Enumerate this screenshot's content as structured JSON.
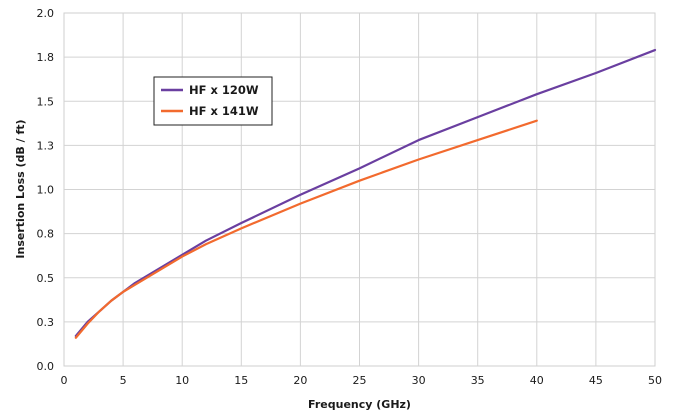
{
  "chart_data": {
    "type": "line",
    "title": "",
    "xlabel": "Frequency (GHz)",
    "ylabel": "Insertion Loss (dB / ft)",
    "xlim": [
      0,
      50
    ],
    "ylim": [
      0,
      2.0
    ],
    "x_ticks": [
      0,
      5,
      10,
      15,
      20,
      25,
      30,
      35,
      40,
      45,
      50
    ],
    "y_ticks": [
      0.0,
      0.25,
      0.5,
      0.75,
      1.0,
      1.25,
      1.5,
      1.75,
      2.0
    ],
    "y_tick_labels": [
      "0.0",
      "0.3",
      "0.5",
      "0.8",
      "1.0",
      "1.3",
      "1.5",
      "1.8",
      "2.0"
    ],
    "grid": true,
    "legend_position": "upper-left",
    "series": [
      {
        "name": "HF x 120W",
        "color": "#6a3fa0",
        "x": [
          1,
          2,
          3,
          4,
          5,
          6,
          8,
          10,
          12,
          15,
          20,
          25,
          30,
          35,
          40,
          45,
          50
        ],
        "y": [
          0.17,
          0.25,
          0.31,
          0.37,
          0.42,
          0.47,
          0.55,
          0.63,
          0.71,
          0.81,
          0.97,
          1.12,
          1.28,
          1.41,
          1.54,
          1.66,
          1.79
        ]
      },
      {
        "name": "HF x 141W",
        "color": "#f26a2e",
        "x": [
          1,
          2,
          3,
          4,
          5,
          6,
          8,
          10,
          12,
          15,
          20,
          25,
          30,
          35,
          40
        ],
        "y": [
          0.16,
          0.24,
          0.31,
          0.37,
          0.42,
          0.46,
          0.54,
          0.62,
          0.69,
          0.78,
          0.92,
          1.05,
          1.17,
          1.28,
          1.39
        ]
      }
    ]
  }
}
